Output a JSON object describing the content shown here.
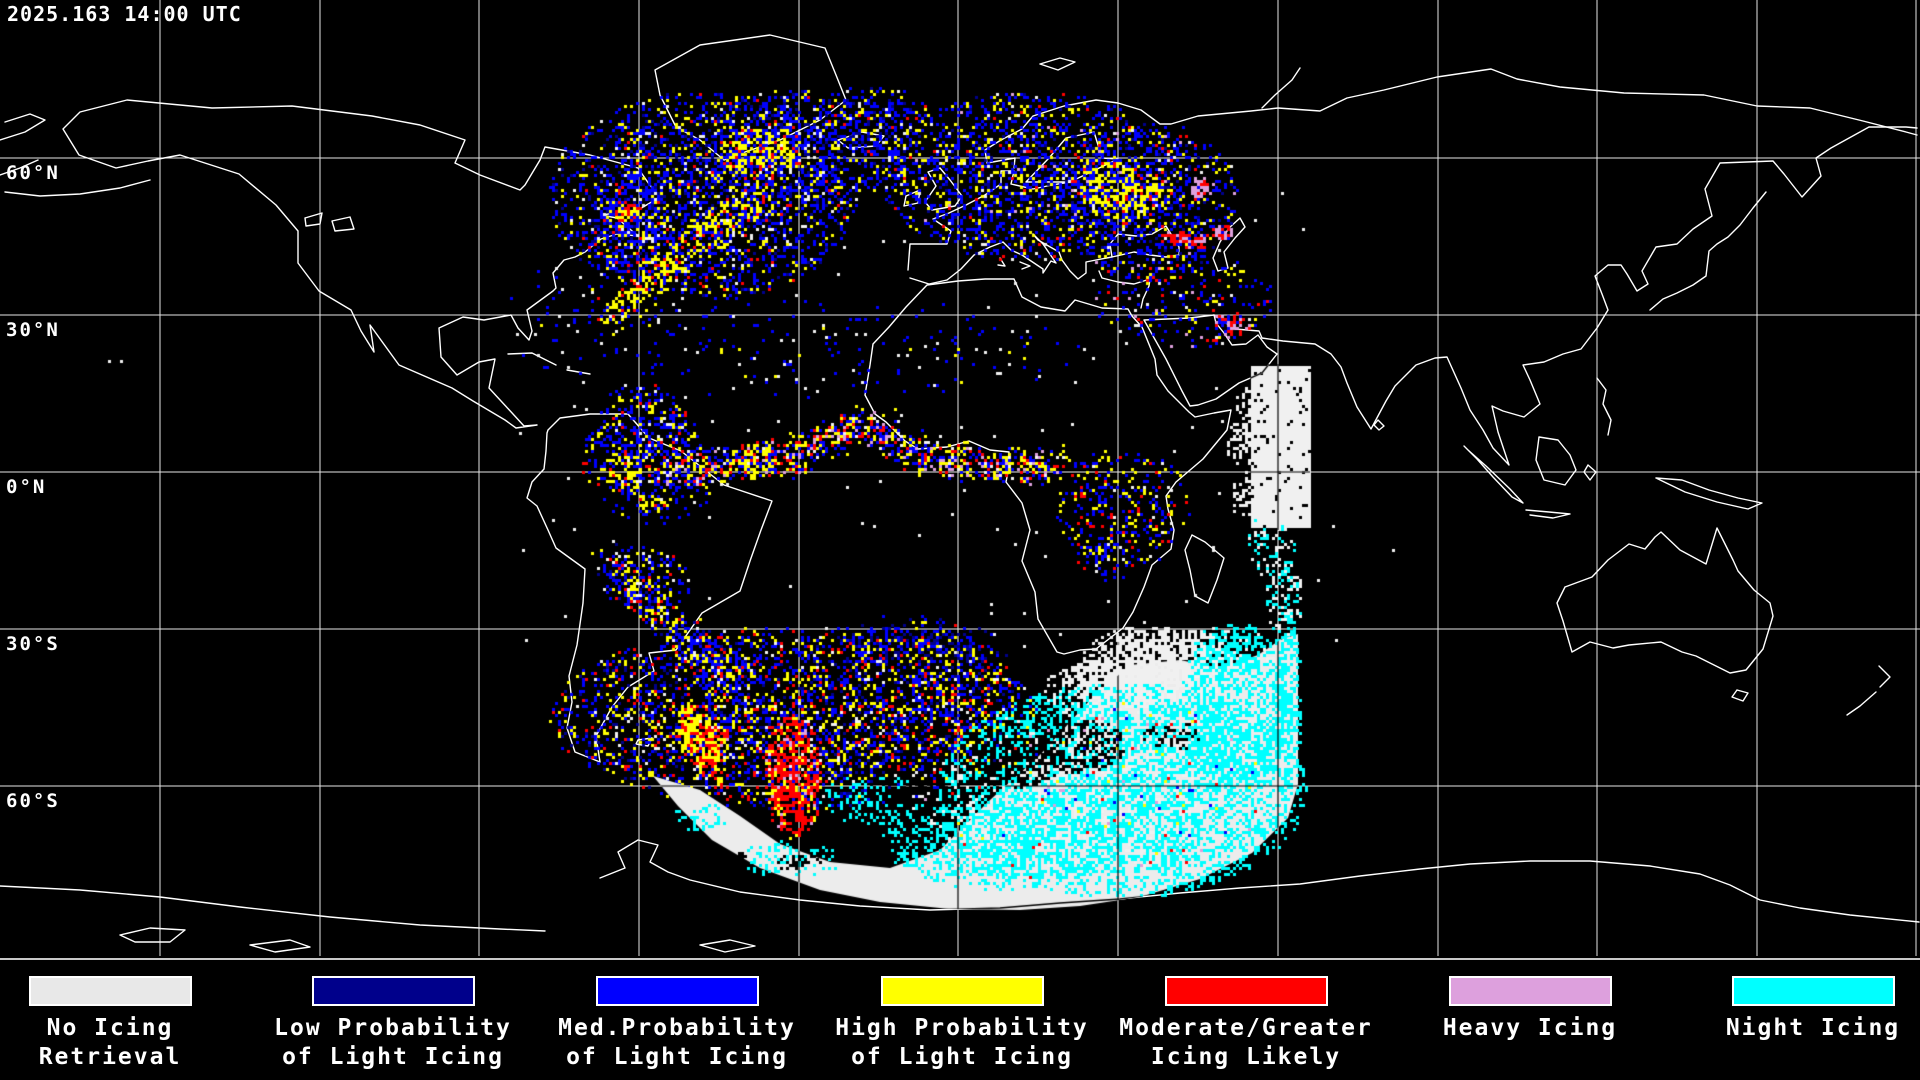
{
  "header": {
    "timestamp": "2025.163 14:00 UTC"
  },
  "map": {
    "lat_labels": [
      {
        "text": "60°N"
      },
      {
        "text": "30°N"
      },
      {
        "text": "0°N"
      },
      {
        "text": "30°S"
      },
      {
        "text": "60°S"
      }
    ],
    "colors": {
      "background": "#000000",
      "coastline": "#ffffff",
      "gridline": "#ffffff",
      "separator": "#c8c8c8",
      "no_retrieval_fill": "#ececec"
    }
  },
  "legend": {
    "items": [
      {
        "name": "no-icing-retrieval",
        "color": "#e8e8e8",
        "label_line1": "No Icing",
        "label_line2": "Retrieval"
      },
      {
        "name": "low-probability",
        "color": "#00008b",
        "label_line1": "Low Probability",
        "label_line2": "of Light Icing"
      },
      {
        "name": "med-probability",
        "color": "#0000ff",
        "label_line1": "Med.Probability",
        "label_line2": "of Light Icing"
      },
      {
        "name": "high-probability",
        "color": "#ffff00",
        "label_line1": "High Probability",
        "label_line2": "of Light Icing"
      },
      {
        "name": "moderate-greater",
        "color": "#ff0000",
        "label_line1": "Moderate/Greater",
        "label_line2": "Icing Likely"
      },
      {
        "name": "heavy-icing",
        "color": "#dda0dd",
        "label_line1": "Heavy Icing",
        "label_line2": ""
      },
      {
        "name": "night-icing",
        "color": "#00ffff",
        "label_line1": "Night Icing",
        "label_line2": ""
      }
    ]
  }
}
